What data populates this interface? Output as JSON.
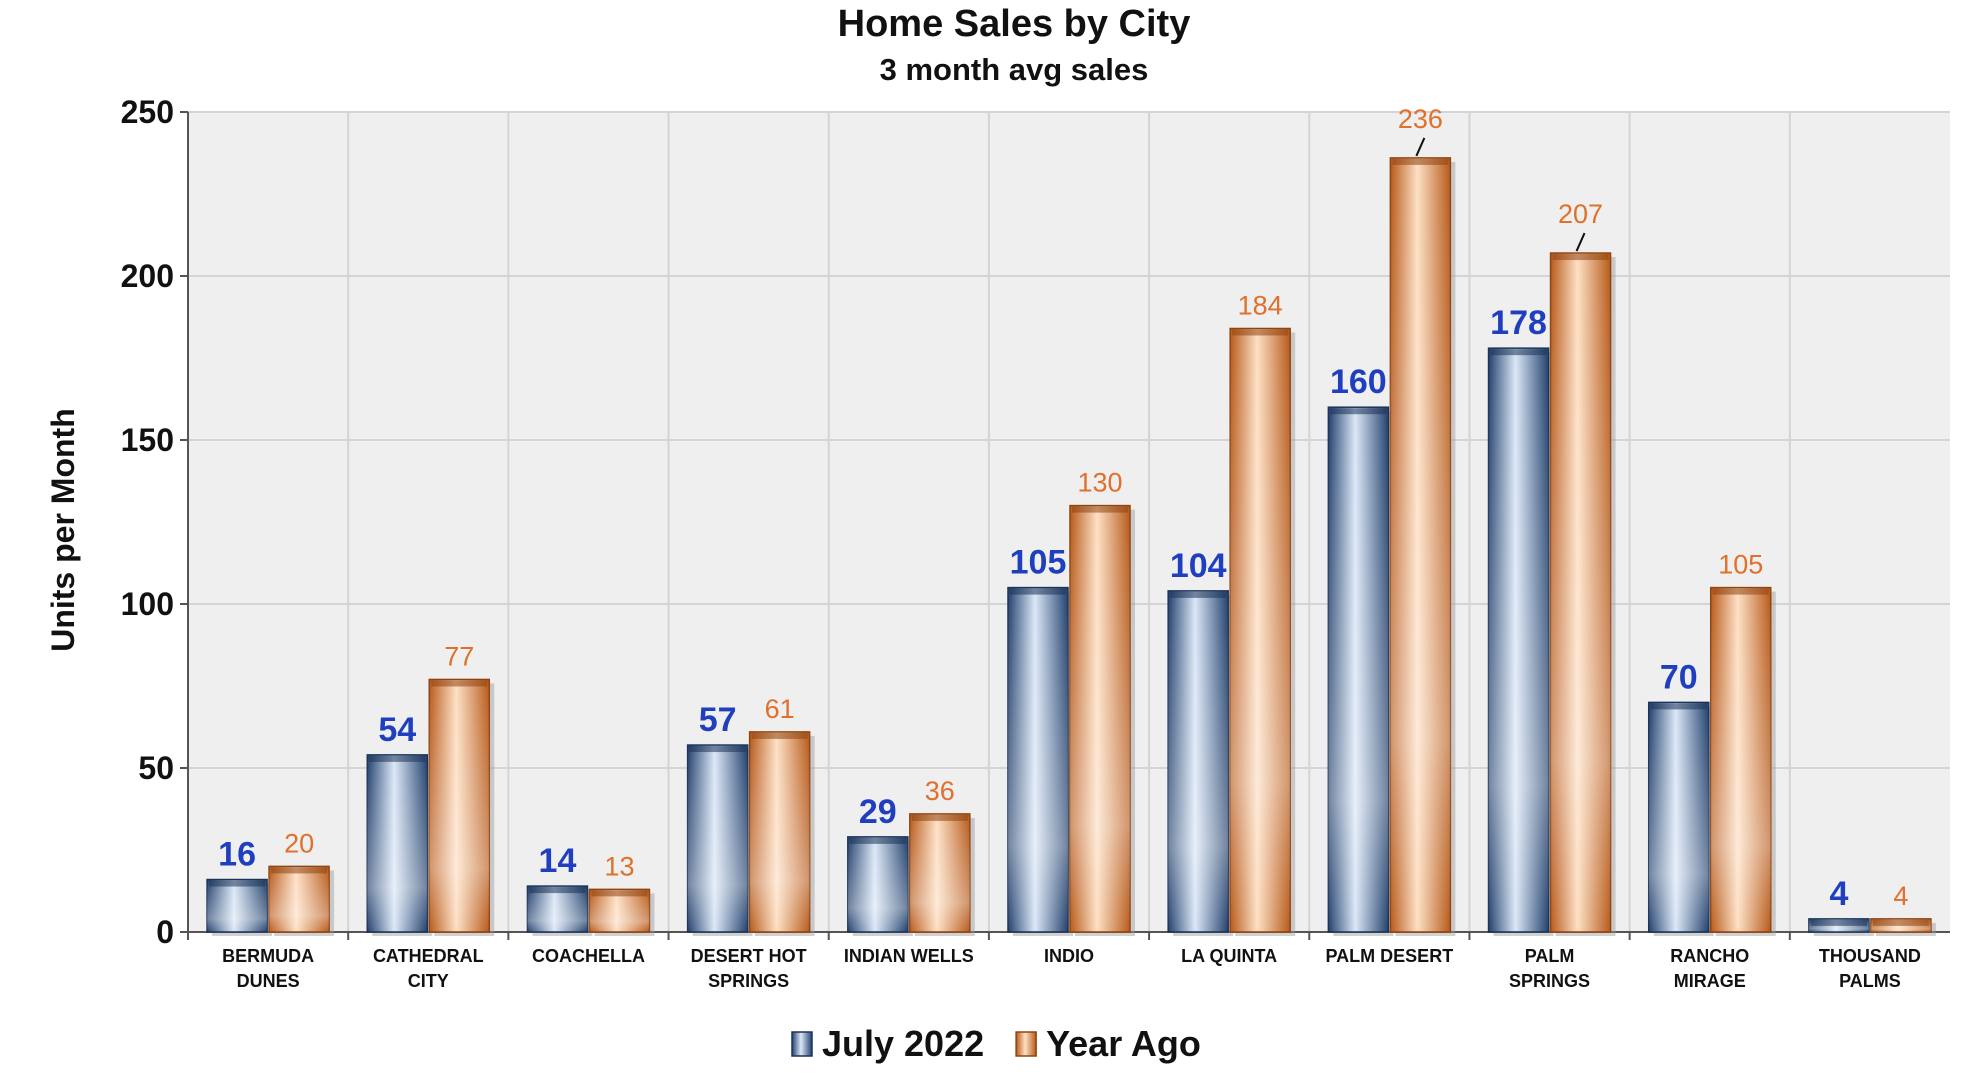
{
  "chart_data": {
    "type": "bar",
    "title": "Home Sales by City",
    "subtitle": "3 month avg sales",
    "xlabel": "",
    "ylabel": "Units per Month",
    "ylim": [
      0,
      250
    ],
    "yticks": [
      0,
      50,
      100,
      150,
      200,
      250
    ],
    "grid": true,
    "legend_position": "bottom",
    "categories": [
      [
        "BERMUDA",
        "DUNES"
      ],
      [
        "CATHEDRAL",
        "CITY"
      ],
      [
        "COACHELLA"
      ],
      [
        "DESERT HOT",
        "SPRINGS"
      ],
      [
        "INDIAN WELLS"
      ],
      [
        "INDIO"
      ],
      [
        "LA QUINTA"
      ],
      [
        "PALM DESERT"
      ],
      [
        "PALM",
        "SPRINGS"
      ],
      [
        "RANCHO",
        "MIRAGE"
      ],
      [
        "THOUSAND",
        "PALMS"
      ]
    ],
    "series": [
      {
        "name": "July 2022",
        "color": "#3a64a0",
        "label_color": "#1f3fbf",
        "values": [
          16,
          54,
          14,
          57,
          29,
          105,
          104,
          160,
          178,
          70,
          4
        ]
      },
      {
        "name": "Year Ago",
        "color": "#e0782a",
        "label_color": "#e0702a",
        "values": [
          20,
          77,
          13,
          61,
          36,
          130,
          184,
          236,
          207,
          105,
          4
        ]
      }
    ]
  }
}
